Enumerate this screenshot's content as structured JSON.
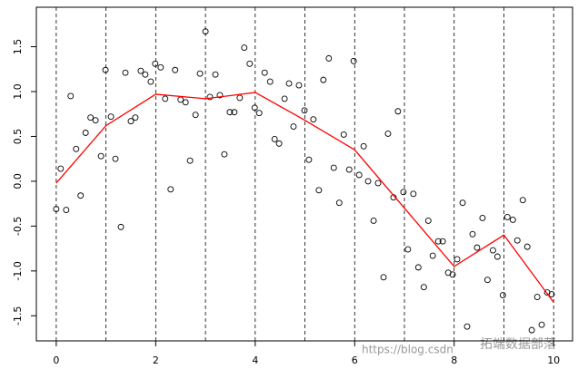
{
  "chart_data": {
    "type": "scatter",
    "xlim": [
      -0.4,
      10.38
    ],
    "ylim": [
      -1.78,
      1.94
    ],
    "xticks": [
      0,
      2,
      4,
      6,
      8,
      10
    ],
    "yticks": [
      -1.5,
      -1.0,
      -0.5,
      0.0,
      0.5,
      1.0,
      1.5
    ],
    "ytick_labels": [
      "-1.5",
      "-1.0",
      "-0.5",
      "0.0",
      "0.5",
      "1.0",
      "1.5"
    ],
    "vlines": [
      0,
      1,
      2,
      3,
      4,
      5,
      6,
      7,
      8,
      9,
      10
    ],
    "points": {
      "color": "#000000",
      "x": [
        0,
        0.09,
        0.2,
        0.29,
        0.4,
        0.49,
        0.59,
        0.69,
        0.79,
        0.9,
        0.99,
        1.1,
        1.19,
        1.3,
        1.39,
        1.5,
        1.59,
        1.7,
        1.79,
        1.9,
        1.99,
        2.1,
        2.19,
        2.3,
        2.39,
        2.5,
        2.6,
        2.69,
        2.8,
        2.89,
        3.0,
        3.09,
        3.2,
        3.29,
        3.38,
        3.49,
        3.58,
        3.69,
        3.78,
        3.89,
        3.99,
        4.08,
        4.19,
        4.3,
        4.39,
        4.48,
        4.59,
        4.68,
        4.77,
        4.88,
        4.99,
        5.08,
        5.17,
        5.28,
        5.37,
        5.48,
        5.58,
        5.69,
        5.78,
        5.89,
        5.98,
        6.09,
        6.18,
        6.27,
        6.38,
        6.47,
        6.58,
        6.67,
        6.78,
        6.87,
        6.98,
        7.07,
        7.18,
        7.28,
        7.39,
        7.48,
        7.57,
        7.68,
        7.77,
        7.88,
        7.97,
        8.06,
        8.17,
        8.26,
        8.37,
        8.46,
        8.57,
        8.67,
        8.78,
        8.87,
        8.98,
        9.07,
        9.18,
        9.27,
        9.38,
        9.47,
        9.56,
        9.67,
        9.76,
        9.87,
        9.96
      ],
      "y": [
        -0.31,
        0.14,
        -0.32,
        0.95,
        0.36,
        -0.16,
        0.54,
        0.71,
        0.68,
        0.28,
        1.24,
        0.72,
        0.25,
        -0.51,
        1.21,
        0.67,
        0.71,
        1.23,
        1.19,
        1.11,
        1.31,
        1.27,
        0.92,
        -0.09,
        1.24,
        0.91,
        0.88,
        0.23,
        0.74,
        1.2,
        1.67,
        0.94,
        1.19,
        0.96,
        0.3,
        0.77,
        0.77,
        0.93,
        1.49,
        1.31,
        0.82,
        0.76,
        1.21,
        1.11,
        0.47,
        0.42,
        0.92,
        1.09,
        0.61,
        1.07,
        0.79,
        0.24,
        0.69,
        -0.1,
        1.13,
        1.37,
        0.15,
        -0.24,
        0.52,
        0.13,
        1.34,
        0.07,
        0.39,
        0.0,
        -0.44,
        -0.02,
        -1.07,
        0.53,
        -0.18,
        0.78,
        -0.12,
        -0.76,
        -0.14,
        -0.96,
        -1.18,
        -0.44,
        -0.83,
        -0.67,
        -0.67,
        -1.02,
        -1.04,
        -0.87,
        -0.24,
        -1.62,
        -0.59,
        -0.74,
        -0.41,
        -1.1,
        -0.77,
        -0.84,
        -1.27,
        -0.4,
        -0.43,
        -0.66,
        -0.21,
        -0.73,
        -1.66,
        -1.29,
        -1.6,
        -1.24,
        -1.26
      ]
    },
    "fit": {
      "color": "#ff0000",
      "x": [
        0,
        1,
        2,
        3,
        4,
        5,
        6,
        7,
        8,
        9,
        10
      ],
      "y": [
        -0.02,
        0.62,
        0.97,
        0.92,
        0.99,
        0.68,
        0.35,
        -0.3,
        -0.95,
        -0.6,
        -1.35
      ]
    },
    "annotations": [
      "https://blog.csdn",
      "拓端数据部落"
    ]
  }
}
